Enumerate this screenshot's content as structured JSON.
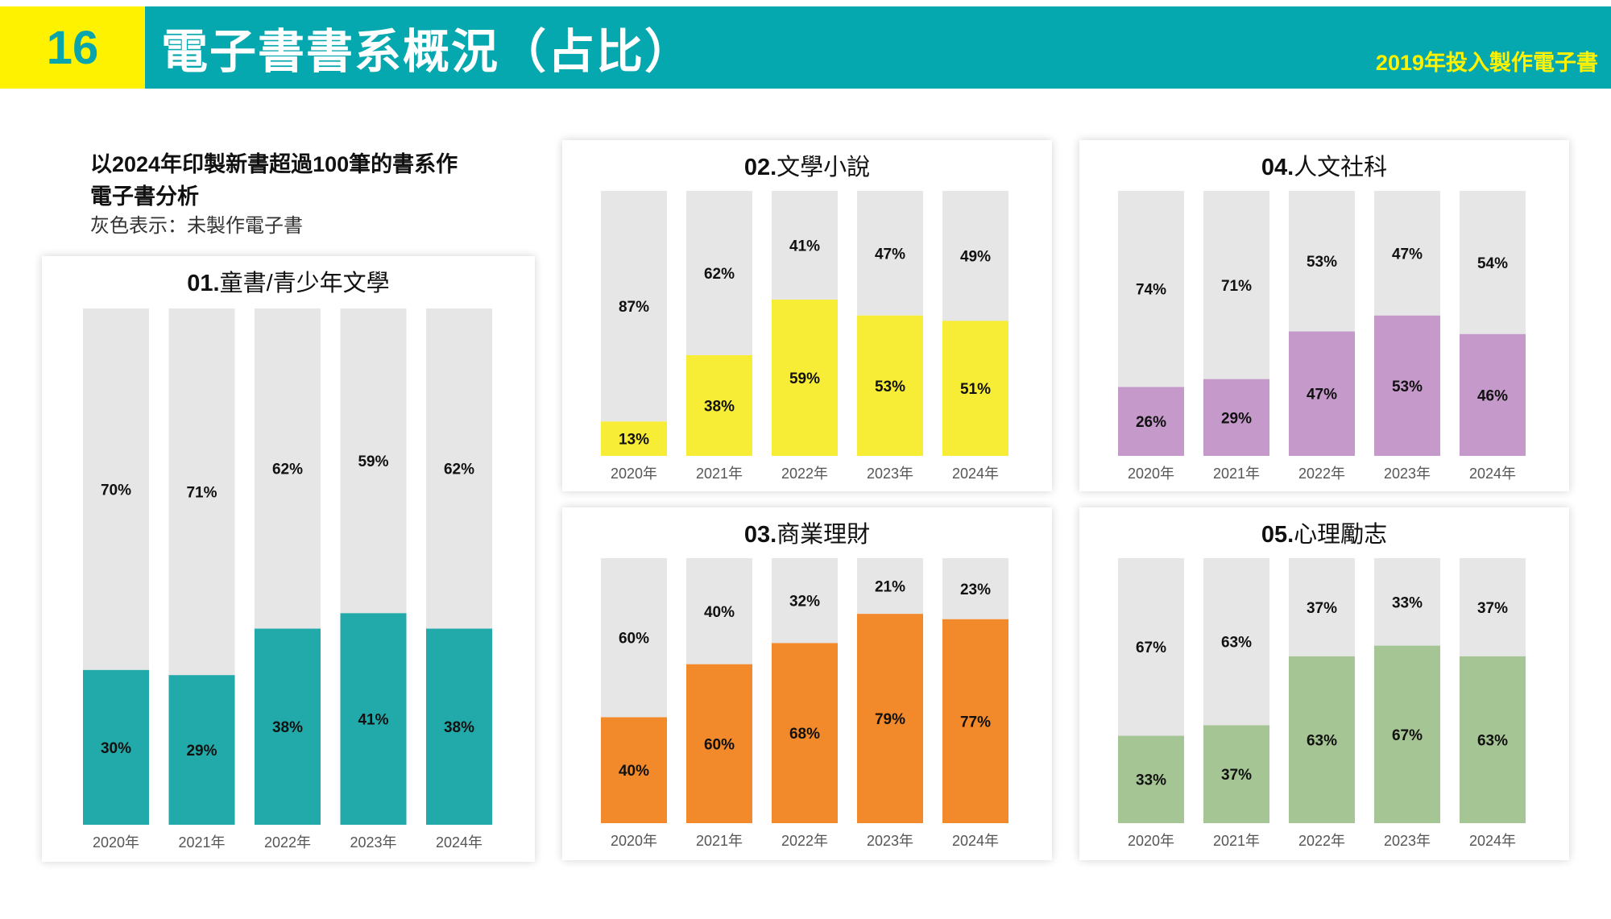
{
  "header": {
    "page_number": "16",
    "title": "電子書書系概況（占比）",
    "subtitle": "2019年投入製作電子書",
    "teal_color": "#06a8b0",
    "yellow_color": "#fff200"
  },
  "intro": {
    "line1": "以2024年印製新書超過100筆的書系作",
    "line2": "電子書分析",
    "line3": "灰色表示：未製作電子書"
  },
  "chart_data": [
    {
      "type": "bar",
      "stacked": true,
      "title_num": "01.",
      "title_text": "童書/青少年文學",
      "categories": [
        "2020年",
        "2021年",
        "2022年",
        "2023年",
        "2024年"
      ],
      "series": [
        {
          "values": [
            30,
            29,
            38,
            41,
            38
          ],
          "color": "#21aaa9"
        },
        {
          "values": [
            70,
            71,
            62,
            59,
            62
          ],
          "color": "#e6e6e6"
        }
      ],
      "ylim": [
        0,
        100
      ],
      "unit": "%",
      "grid": false
    },
    {
      "type": "bar",
      "stacked": true,
      "title_num": "02.",
      "title_text": "文學小說",
      "categories": [
        "2020年",
        "2021年",
        "2022年",
        "2023年",
        "2024年"
      ],
      "series": [
        {
          "values": [
            13,
            38,
            59,
            53,
            51
          ],
          "color": "#f7ec36"
        },
        {
          "values": [
            87,
            62,
            41,
            47,
            49
          ],
          "color": "#e6e6e6"
        }
      ],
      "ylim": [
        0,
        100
      ],
      "unit": "%",
      "grid": false
    },
    {
      "type": "bar",
      "stacked": true,
      "title_num": "03.",
      "title_text": "商業理財",
      "categories": [
        "2020年",
        "2021年",
        "2022年",
        "2023年",
        "2024年"
      ],
      "series": [
        {
          "values": [
            40,
            60,
            68,
            79,
            77
          ],
          "color": "#f28a2b"
        },
        {
          "values": [
            60,
            40,
            32,
            21,
            23
          ],
          "color": "#e6e6e6"
        }
      ],
      "ylim": [
        0,
        100
      ],
      "unit": "%",
      "grid": false
    },
    {
      "type": "bar",
      "stacked": true,
      "title_num": "04.",
      "title_text": "人文社科",
      "categories": [
        "2020年",
        "2021年",
        "2022年",
        "2023年",
        "2024年"
      ],
      "series": [
        {
          "values": [
            26,
            29,
            47,
            53,
            46
          ],
          "color": "#c59acb"
        },
        {
          "values": [
            74,
            71,
            53,
            47,
            54
          ],
          "color": "#e6e6e6"
        }
      ],
      "ylim": [
        0,
        100
      ],
      "unit": "%",
      "grid": false
    },
    {
      "type": "bar",
      "stacked": true,
      "title_num": "05.",
      "title_text": "心理勵志",
      "categories": [
        "2020年",
        "2021年",
        "2022年",
        "2023年",
        "2024年"
      ],
      "series": [
        {
          "values": [
            33,
            37,
            63,
            67,
            63
          ],
          "color": "#a6c595"
        },
        {
          "values": [
            67,
            63,
            37,
            33,
            37
          ],
          "color": "#e6e6e6"
        }
      ],
      "ylim": [
        0,
        100
      ],
      "unit": "%",
      "grid": false
    }
  ]
}
